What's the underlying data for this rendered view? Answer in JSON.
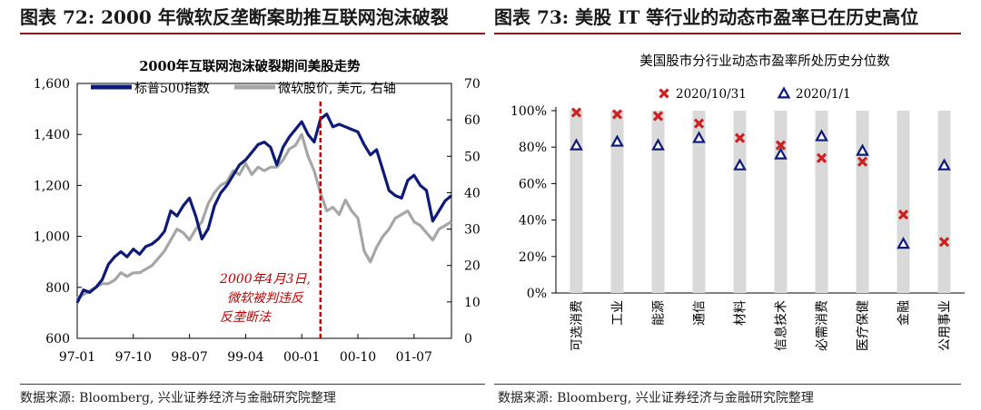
{
  "headers": {
    "left": "图表 72: 2000 年微软反垄断案助推互联网泡沫破裂",
    "right": "图表 73: 美股 IT 等行业的动态市盈率已在历史高位"
  },
  "sources": {
    "left": "数据来源: Bloomberg, 兴业证券经济与金融研究院整理",
    "right": "数据来源: Bloomberg, 兴业证券经济与金融研究院整理"
  },
  "colors": {
    "sp500": "#0d1a78",
    "msft": "#a6a6a6",
    "bar": "#d9d9d9",
    "marker_2020_10_31": "#cc2222",
    "marker_2020_1_1": "#0d1a78",
    "annotation": "#c00000",
    "rule": "#8a1b1b"
  },
  "chart_data": [
    {
      "type": "line",
      "title": "2000年互联网泡沫破裂期间美股走势",
      "x_ticks": [
        "97-01",
        "97-10",
        "98-07",
        "99-04",
        "00-01",
        "00-10",
        "01-07"
      ],
      "x_tick_index": [
        0,
        9,
        18,
        27,
        36,
        45,
        54
      ],
      "y_left": {
        "ticks": [
          "600",
          "800",
          "1,000",
          "1,200",
          "1,400",
          "1,600"
        ],
        "range": [
          600,
          1600
        ]
      },
      "y_right": {
        "ticks": [
          "0",
          "10",
          "20",
          "30",
          "40",
          "50",
          "60",
          "70"
        ],
        "range": [
          0,
          70
        ]
      },
      "legend": [
        "标普500指数",
        "微软股价, 美元, 右轴"
      ],
      "legend_position": "top-left",
      "series": [
        {
          "name": "标普500指数",
          "axis": "left",
          "values": [
            740,
            790,
            780,
            800,
            830,
            890,
            920,
            940,
            920,
            950,
            930,
            960,
            970,
            990,
            1020,
            1100,
            1080,
            1120,
            1150,
            1080,
            990,
            1030,
            1120,
            1170,
            1200,
            1240,
            1280,
            1300,
            1330,
            1360,
            1370,
            1350,
            1280,
            1350,
            1390,
            1420,
            1450,
            1400,
            1370,
            1460,
            1480,
            1430,
            1440,
            1430,
            1420,
            1410,
            1360,
            1320,
            1340,
            1260,
            1180,
            1160,
            1150,
            1220,
            1240,
            1200,
            1180,
            1060,
            1100,
            1140,
            1160
          ]
        },
        {
          "name": "微软股价, 美元, 右轴",
          "axis": "right",
          "values": [
            11,
            12,
            13,
            14,
            15,
            15,
            16,
            18,
            17,
            18,
            18,
            19,
            20,
            22,
            24,
            27,
            30,
            29,
            27,
            30,
            32,
            37,
            40,
            42,
            43,
            46,
            45,
            48,
            45,
            47,
            46,
            47,
            47,
            49,
            52,
            53,
            56,
            50,
            46,
            40,
            35,
            36,
            34,
            38,
            35,
            33,
            24,
            21,
            25,
            28,
            30,
            33,
            34,
            35,
            32,
            31,
            29,
            27,
            30,
            31,
            32
          ]
        }
      ],
      "annotation": {
        "index": 39,
        "lines": [
          "2000年4月3日,",
          "微软被判违反",
          "反垄断法"
        ]
      }
    },
    {
      "type": "bar",
      "title": "美国股市分行业动态市盈率所处历史分位数",
      "categories": [
        "可选消费",
        "工业",
        "能源",
        "通信",
        "材料",
        "信息技术",
        "必需消费",
        "医疗保健",
        "金融",
        "公用事业"
      ],
      "y_ticks": [
        "0%",
        "20%",
        "40%",
        "60%",
        "80%",
        "100%"
      ],
      "ylim": [
        0,
        100
      ],
      "legend_position": "top-center",
      "series": [
        {
          "name": "2020/10/31",
          "marker": "x",
          "values": [
            99,
            98,
            97,
            93,
            85,
            81,
            74,
            72,
            43,
            28
          ]
        },
        {
          "name": "2020/1/1",
          "marker": "triangle",
          "values": [
            81,
            83,
            81,
            85,
            70,
            76,
            86,
            78,
            27,
            70
          ]
        }
      ],
      "bar_values": [
        100,
        100,
        100,
        100,
        100,
        100,
        100,
        100,
        100,
        100
      ]
    }
  ]
}
